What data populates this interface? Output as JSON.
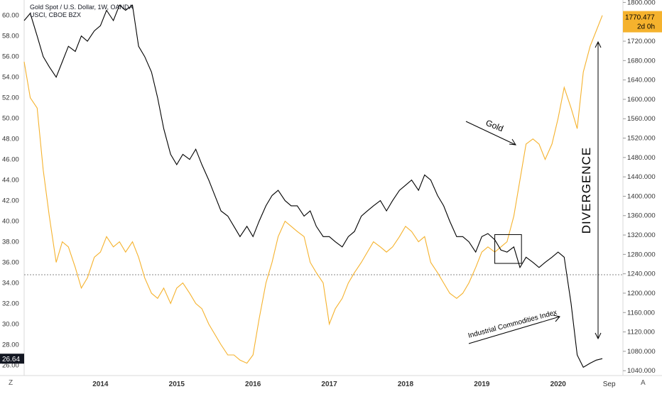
{
  "header": {
    "title": "Gold Spot / U.S. Dollar, 1W, OANDA",
    "subtitle": "USCI, CBOE BZX"
  },
  "corner": {
    "left": "Z",
    "right": "A"
  },
  "price_badge": {
    "value": "1770.477",
    "countdown": "2d 0h"
  },
  "left_badge": {
    "value": "26.64"
  },
  "chart_data": {
    "type": "line",
    "x_ticks": [
      "2014",
      "2015",
      "2016",
      "2017",
      "2018",
      "2019",
      "2020",
      "Sep"
    ],
    "x_tick_years": [
      2014,
      2015,
      2016,
      2017,
      2018,
      2019,
      2020,
      2020.67
    ],
    "xlim": [
      2013.0,
      2020.85
    ],
    "left_axis": {
      "ylim": [
        25.0,
        61.5
      ],
      "ticks": [
        "26.00",
        "28.00",
        "30.00",
        "32.00",
        "34.00",
        "36.00",
        "38.00",
        "40.00",
        "42.00",
        "44.00",
        "46.00",
        "48.00",
        "50.00",
        "52.00",
        "54.00",
        "56.00",
        "58.00",
        "60.00"
      ],
      "tick_values": [
        26,
        28,
        30,
        32,
        34,
        36,
        38,
        40,
        42,
        44,
        46,
        48,
        50,
        52,
        54,
        56,
        58,
        60
      ]
    },
    "right_axis": {
      "ylim": [
        1030,
        1805
      ],
      "ticks": [
        "1040.000",
        "1080.000",
        "1120.000",
        "1160.000",
        "1200.000",
        "1240.000",
        "1280.000",
        "1320.000",
        "1360.000",
        "1400.000",
        "1440.000",
        "1480.000",
        "1520.000",
        "1560.000",
        "1600.000",
        "1640.000",
        "1680.000",
        "1720.000",
        "1760.000",
        "1800.000"
      ],
      "tick_values": [
        1040,
        1080,
        1120,
        1160,
        1200,
        1240,
        1280,
        1320,
        1360,
        1400,
        1440,
        1480,
        1520,
        1560,
        1600,
        1640,
        1680,
        1720,
        1760,
        1800
      ]
    },
    "series": [
      {
        "axis": "left",
        "color": "#000000",
        "x": [
          2013.0,
          2013.08,
          2013.17,
          2013.25,
          2013.33,
          2013.42,
          2013.5,
          2013.58,
          2013.67,
          2013.75,
          2013.83,
          2013.92,
          2014.0,
          2014.08,
          2014.17,
          2014.25,
          2014.33,
          2014.42,
          2014.5,
          2014.58,
          2014.67,
          2014.75,
          2014.83,
          2014.92,
          2015.0,
          2015.08,
          2015.17,
          2015.25,
          2015.33,
          2015.42,
          2015.5,
          2015.58,
          2015.67,
          2015.75,
          2015.83,
          2015.92,
          2016.0,
          2016.08,
          2016.17,
          2016.25,
          2016.33,
          2016.42,
          2016.5,
          2016.58,
          2016.67,
          2016.75,
          2016.83,
          2016.92,
          2017.0,
          2017.08,
          2017.17,
          2017.25,
          2017.33,
          2017.42,
          2017.5,
          2017.58,
          2017.67,
          2017.75,
          2017.83,
          2017.92,
          2018.0,
          2018.08,
          2018.17,
          2018.25,
          2018.33,
          2018.42,
          2018.5,
          2018.58,
          2018.67,
          2018.75,
          2018.83,
          2018.92,
          2019.0,
          2019.08,
          2019.17,
          2019.25,
          2019.33,
          2019.42,
          2019.5,
          2019.58,
          2019.67,
          2019.75,
          2019.83,
          2019.92,
          2020.0,
          2020.08,
          2020.17,
          2020.25,
          2020.33,
          2020.42,
          2020.5,
          2020.58
        ],
        "y": [
          59.5,
          60.2,
          58.0,
          56.0,
          55.0,
          54.0,
          55.5,
          57.0,
          56.5,
          58.0,
          57.5,
          58.5,
          59.0,
          60.5,
          59.5,
          61.0,
          60.5,
          61.0,
          57.0,
          56.0,
          54.5,
          52.0,
          49.0,
          46.5,
          45.5,
          46.5,
          46.0,
          47.0,
          45.5,
          44.0,
          42.5,
          41.0,
          40.5,
          39.5,
          38.5,
          39.5,
          38.5,
          40.0,
          41.5,
          42.5,
          43.0,
          42.0,
          41.5,
          41.5,
          40.5,
          41.0,
          39.5,
          38.5,
          38.5,
          38.0,
          37.5,
          38.5,
          39.0,
          40.5,
          41.0,
          41.5,
          42.0,
          41.0,
          42.0,
          43.0,
          43.5,
          44.0,
          43.0,
          44.5,
          44.0,
          42.5,
          41.5,
          40.0,
          38.5,
          38.5,
          38.0,
          37.0,
          38.5,
          38.8,
          38.2,
          37.2,
          37.0,
          37.5,
          35.5,
          36.5,
          36.0,
          35.5,
          36.0,
          36.5,
          37.0,
          36.5,
          32.0,
          27.0,
          25.8,
          26.2,
          26.5,
          26.64
        ]
      },
      {
        "axis": "left",
        "color": "#f5b22d",
        "x": [
          2013.0,
          2013.08,
          2013.17,
          2013.25,
          2013.33,
          2013.42,
          2013.5,
          2013.58,
          2013.67,
          2013.75,
          2013.83,
          2013.92,
          2014.0,
          2014.08,
          2014.17,
          2014.25,
          2014.33,
          2014.42,
          2014.5,
          2014.58,
          2014.67,
          2014.75,
          2014.83,
          2014.92,
          2015.0,
          2015.08,
          2015.17,
          2015.25,
          2015.33,
          2015.42,
          2015.5,
          2015.58,
          2015.67,
          2015.75,
          2015.83,
          2015.92,
          2016.0,
          2016.08,
          2016.17,
          2016.25,
          2016.33,
          2016.42,
          2016.5,
          2016.58,
          2016.67,
          2016.75,
          2016.83,
          2016.92,
          2017.0,
          2017.08,
          2017.17,
          2017.25,
          2017.33,
          2017.42,
          2017.5,
          2017.58,
          2017.67,
          2017.75,
          2017.83,
          2017.92,
          2018.0,
          2018.08,
          2018.17,
          2018.25,
          2018.33,
          2018.42,
          2018.5,
          2018.58,
          2018.67,
          2018.75,
          2018.83,
          2018.92,
          2019.0,
          2019.08,
          2019.17,
          2019.25,
          2019.33,
          2019.42,
          2019.5,
          2019.58,
          2019.67,
          2019.75,
          2019.83,
          2019.92,
          2020.0,
          2020.08,
          2020.17,
          2020.25,
          2020.33,
          2020.42,
          2020.5,
          2020.58
        ],
        "y": [
          55.5,
          52.0,
          51.0,
          45.0,
          40.5,
          36.0,
          38.0,
          37.5,
          35.5,
          33.5,
          34.5,
          36.5,
          37.0,
          38.5,
          37.5,
          38.0,
          37.0,
          38.0,
          36.5,
          34.5,
          33.0,
          32.5,
          33.5,
          32.0,
          33.5,
          34.0,
          33.0,
          32.0,
          31.5,
          30.0,
          29.0,
          28.0,
          27.0,
          27.0,
          26.5,
          26.2,
          27.0,
          30.5,
          34.0,
          36.0,
          38.5,
          40.0,
          39.5,
          39.0,
          38.5,
          36.0,
          35.0,
          34.0,
          30.0,
          31.5,
          32.5,
          34.0,
          35.0,
          36.0,
          37.0,
          38.0,
          37.5,
          37.0,
          37.5,
          38.5,
          39.5,
          39.0,
          38.0,
          38.5,
          36.0,
          35.0,
          34.0,
          33.0,
          32.5,
          33.0,
          34.0,
          35.5,
          37.0,
          37.5,
          37.0,
          37.5,
          38.0,
          40.5,
          44.0,
          47.5,
          48.0,
          47.5,
          46.0,
          47.5,
          50.0,
          53.0,
          51.0,
          49.0,
          54.5,
          57.0,
          58.5,
          60.0
        ]
      }
    ],
    "ref_line": {
      "axis": "left",
      "y": 34.8
    },
    "annotations": [
      {
        "text": "Gold"
      },
      {
        "text": "Industrial Commodities Index"
      },
      {
        "text": "DIVERGENCE"
      }
    ],
    "grid": false
  }
}
